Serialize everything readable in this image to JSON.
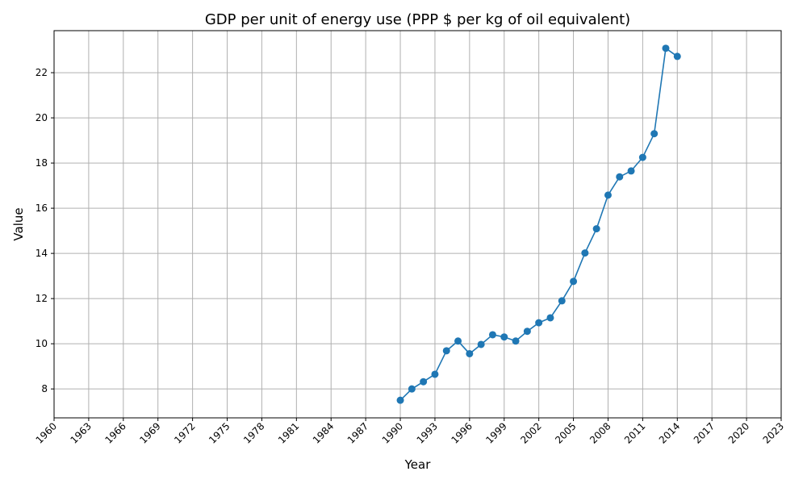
{
  "chart_data": {
    "type": "line",
    "title": "GDP per unit of energy use (PPP $ per kg of oil equivalent)",
    "xlabel": "Year",
    "ylabel": "Value",
    "xlim": [
      1960,
      2023
    ],
    "ylim": [
      6.72,
      23.86
    ],
    "grid": true,
    "x_ticks": [
      1960,
      1963,
      1966,
      1969,
      1972,
      1975,
      1978,
      1981,
      1984,
      1987,
      1990,
      1993,
      1996,
      1999,
      2002,
      2005,
      2008,
      2011,
      2014,
      2017,
      2020,
      2023
    ],
    "y_ticks": [
      8,
      10,
      12,
      14,
      16,
      18,
      20,
      22
    ],
    "series": [
      {
        "color": "#1f77b4",
        "marker": "circle",
        "x": [
          1990,
          1991,
          1992,
          1993,
          1994,
          1995,
          1996,
          1997,
          1998,
          1999,
          2000,
          2001,
          2002,
          2003,
          2004,
          2005,
          2006,
          2007,
          2008,
          2009,
          2010,
          2011,
          2012,
          2013,
          2014
        ],
        "y": [
          7.5,
          8.0,
          8.32,
          8.65,
          9.69,
          10.12,
          9.56,
          9.97,
          10.4,
          10.3,
          10.12,
          10.55,
          10.93,
          11.15,
          11.9,
          12.76,
          14.02,
          15.09,
          16.58,
          17.39,
          17.65,
          18.25,
          19.3,
          23.08,
          22.72
        ]
      }
    ]
  }
}
